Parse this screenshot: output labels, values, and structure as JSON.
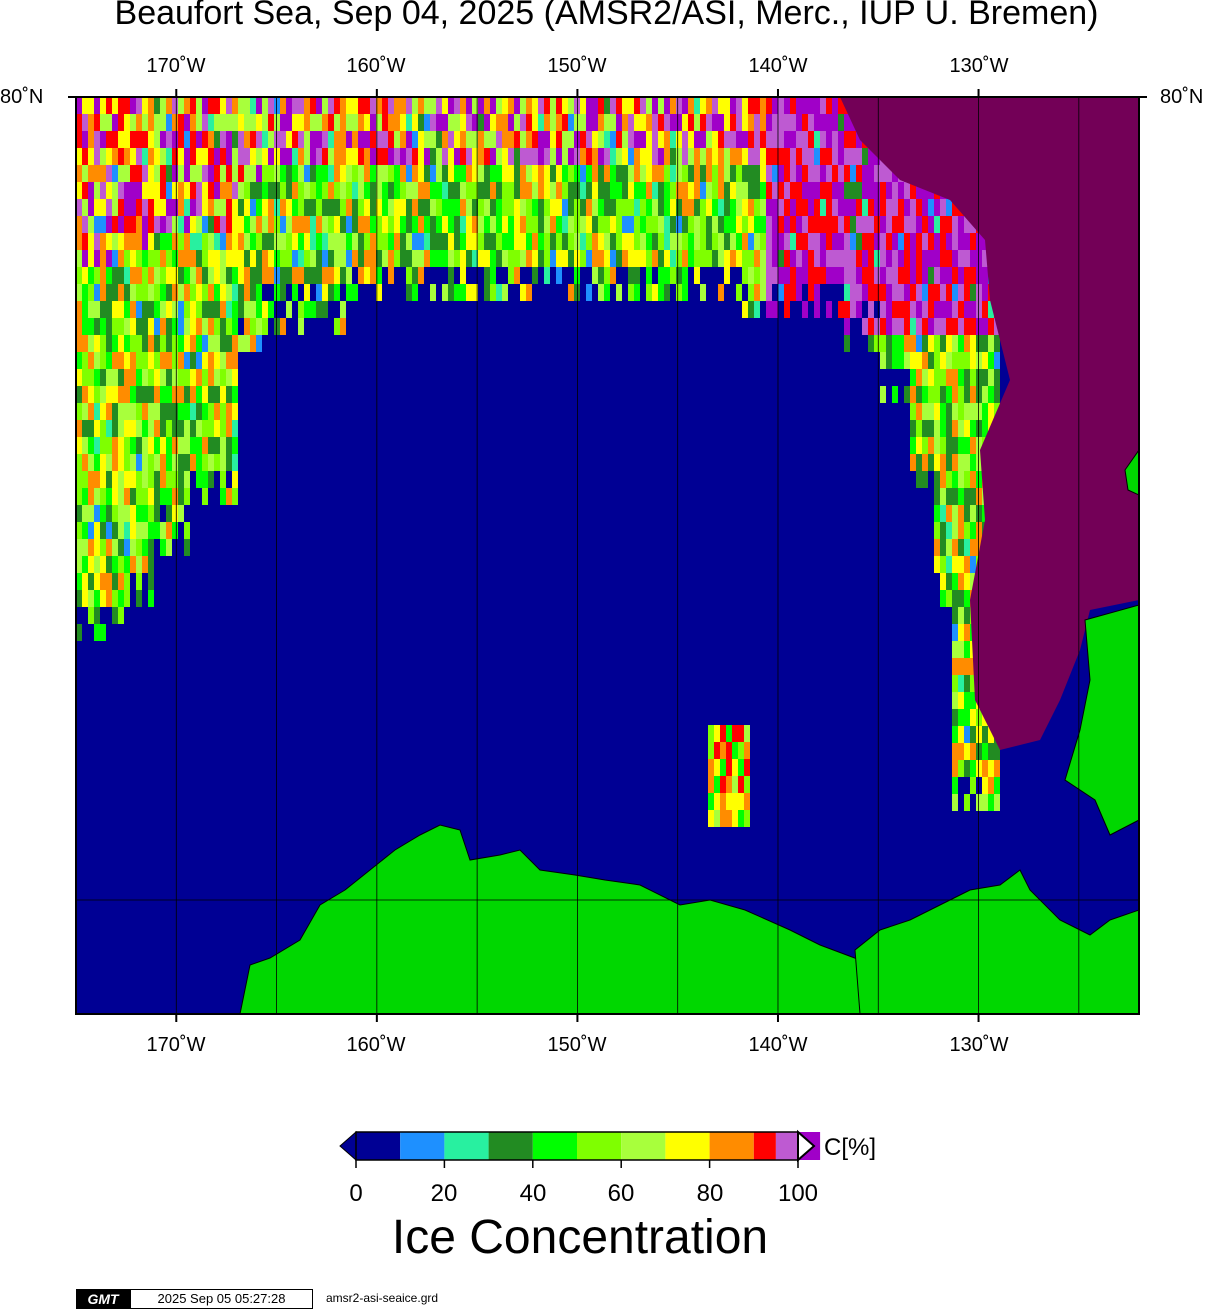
{
  "title": "Beaufort Sea, Sep 04, 2025 (AMSR2/ASI, Merc., IUP U. Bremen)",
  "map": {
    "lon_ticks": [
      "170˚W",
      "160˚W",
      "150˚W",
      "140˚W",
      "130˚W"
    ],
    "lat_label": "80˚N",
    "lon_range": [
      -175,
      -122
    ],
    "colors": {
      "ocean": "#000094",
      "land": "#00d700",
      "multiyear_ice": "#730057",
      "graticule": "#000000"
    }
  },
  "colorbar": {
    "ticks": [
      "0",
      "20",
      "40",
      "60",
      "80",
      "100"
    ],
    "unit": "C[%]",
    "title": "Ice Concentration",
    "colors": [
      "#000094",
      "#1e90ff",
      "#28f0a0",
      "#228b22",
      "#00ff00",
      "#7fff00",
      "#a8ff3c",
      "#ffff00",
      "#ff8c00",
      "#ff0000",
      "#be5ad2",
      "#a000c8"
    ]
  },
  "footer": {
    "logo": "GMT",
    "timestamp": "2025 Sep 05 05:27:28",
    "grid_file": "amsr2-asi-seaice.grd"
  }
}
